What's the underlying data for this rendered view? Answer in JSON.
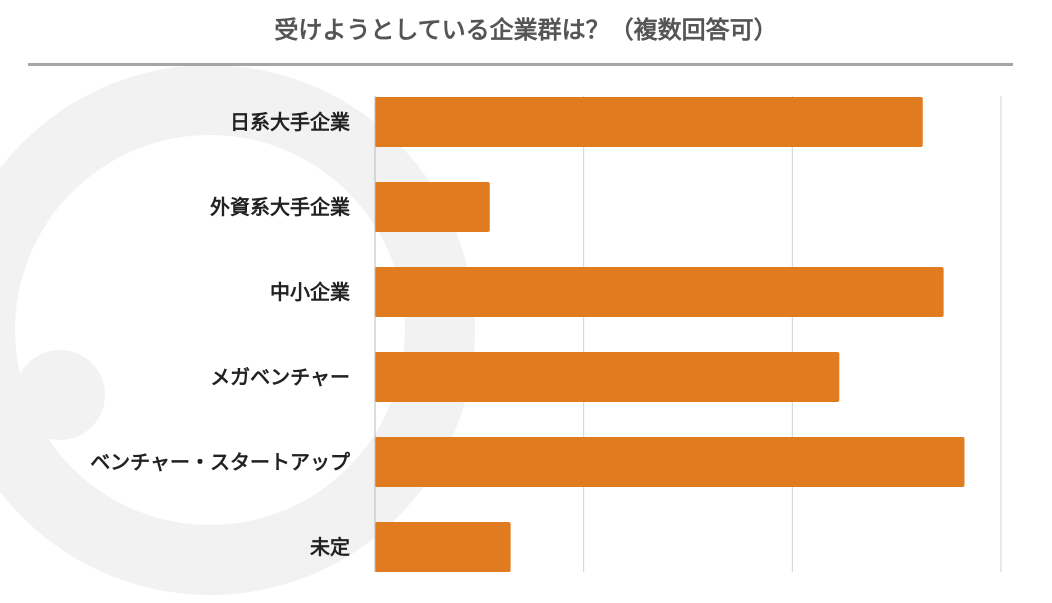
{
  "colors": {
    "bar": "#e07b1f",
    "grid": "#d0d0d0",
    "axis": "#bbbbbb",
    "title": "#555555",
    "watermark": "#f2f2f2"
  },
  "chart_data": {
    "type": "bar",
    "orientation": "horizontal",
    "title": "受けようとしている企業群は？（複数回答可）",
    "categories": [
      "日系大手企業",
      "外資系大手企業",
      "中小企業",
      "メガベンチャー",
      "ベンチャー・スタートアップ",
      "未定"
    ],
    "values": [
      52.5,
      11,
      54.5,
      44.5,
      56.5,
      13
    ],
    "xlim": [
      0,
      60
    ],
    "gridlines": [
      0,
      20,
      40,
      60
    ],
    "grid": true
  }
}
